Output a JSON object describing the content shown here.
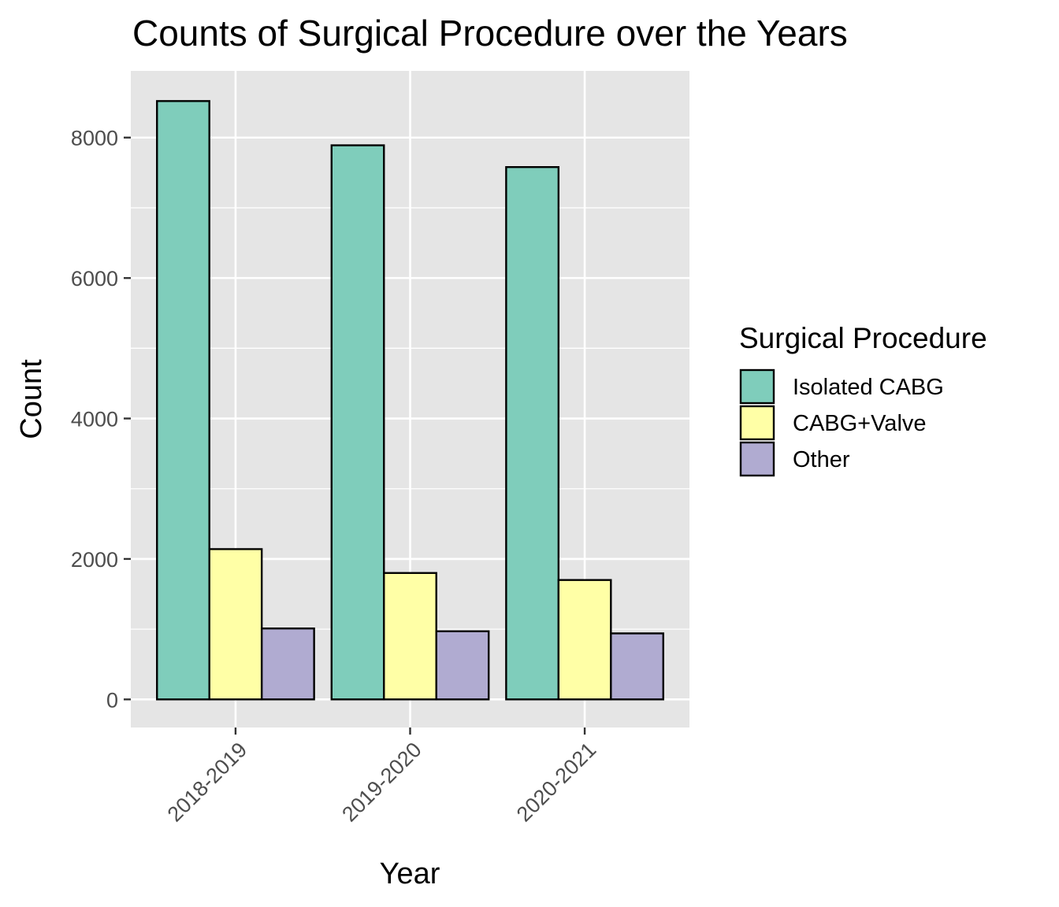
{
  "chart_data": {
    "type": "bar",
    "title": "Counts of Surgical Procedure over the Years",
    "xlabel": "Year",
    "ylabel": "Count",
    "categories": [
      "2018-2019",
      "2019-2020",
      "2020-2021"
    ],
    "series": [
      {
        "name": "Isolated CABG",
        "values": [
          8520,
          7890,
          7580
        ],
        "color": "#7FCDBB"
      },
      {
        "name": "CABG+Valve",
        "values": [
          2140,
          1800,
          1700
        ],
        "color": "#FFFFA6"
      },
      {
        "name": "Other",
        "values": [
          1010,
          970,
          940
        ],
        "color": "#B0ABD1"
      }
    ],
    "ylim": [
      -400,
      8950
    ],
    "yticks": [
      0,
      2000,
      4000,
      6000,
      8000
    ],
    "grid": true,
    "legend": {
      "title": "Surgical Procedure",
      "placement": "right"
    },
    "colors": {
      "panel": "#E5E5E5",
      "grid": "#FFFFFF",
      "bar_outline": "#000000"
    }
  }
}
